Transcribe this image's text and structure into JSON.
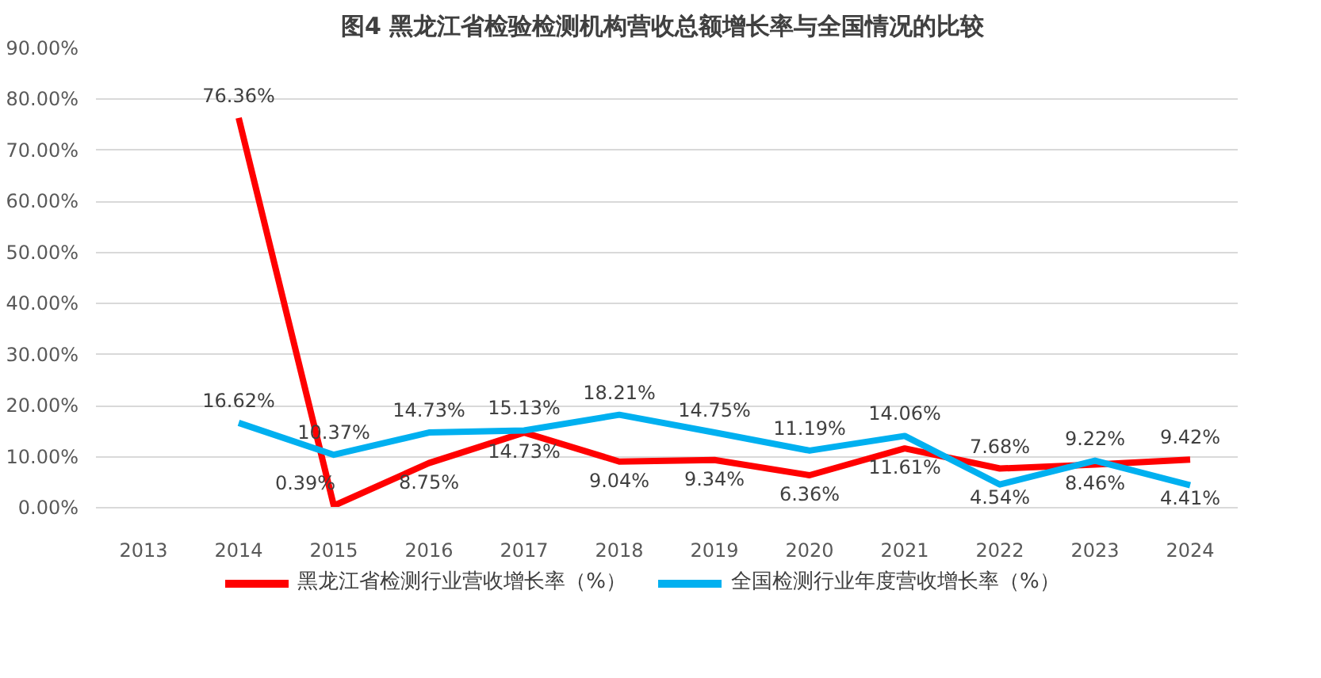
{
  "chart_data": {
    "type": "line",
    "title": "图4  黑龙江省检验检测机构营收总额增长率与全国情况的比较",
    "categories": [
      "2013",
      "2014",
      "2015",
      "2016",
      "2017",
      "2018",
      "2019",
      "2020",
      "2021",
      "2022",
      "2023",
      "2024"
    ],
    "series": [
      {
        "name": "黑龙江省检测行业营收增长率（%）",
        "color": "#ff0000",
        "values": [
          null,
          76.36,
          0.39,
          8.75,
          14.73,
          9.04,
          9.34,
          6.36,
          11.61,
          7.68,
          8.46,
          9.42
        ],
        "value_labels": [
          null,
          "76.36%",
          "0.39%",
          "8.75%",
          "14.73%",
          "9.04%",
          "9.34%",
          "6.36%",
          "11.61%",
          "7.68%",
          "8.46%",
          "9.42%"
        ]
      },
      {
        "name": "全国检测行业年度营收增长率（%）",
        "color": "#00b0f0",
        "values": [
          null,
          16.62,
          10.37,
          14.73,
          15.13,
          18.21,
          14.75,
          11.19,
          14.06,
          4.54,
          9.22,
          4.41
        ],
        "value_labels": [
          null,
          "16.62%",
          "10.37%",
          "14.73%",
          "15.13%",
          "18.21%",
          "14.75%",
          "11.19%",
          "14.06%",
          "4.54%",
          "9.22%",
          "4.41%"
        ]
      }
    ],
    "ylim": [
      0,
      90
    ],
    "yticks": [
      {
        "value": 0,
        "label": "0.00%"
      },
      {
        "value": 10,
        "label": "10.00%"
      },
      {
        "value": 20,
        "label": "20.00%"
      },
      {
        "value": 30,
        "label": "30.00%"
      },
      {
        "value": 40,
        "label": "40.00%"
      },
      {
        "value": 50,
        "label": "50.00%"
      },
      {
        "value": 60,
        "label": "60.00%"
      },
      {
        "value": 70,
        "label": "70.00%"
      },
      {
        "value": 80,
        "label": "80.00%"
      },
      {
        "value": 90,
        "label": "90.00%"
      }
    ],
    "grid": "y",
    "legend": "bottom",
    "marker": "none",
    "line_style": "solid"
  }
}
